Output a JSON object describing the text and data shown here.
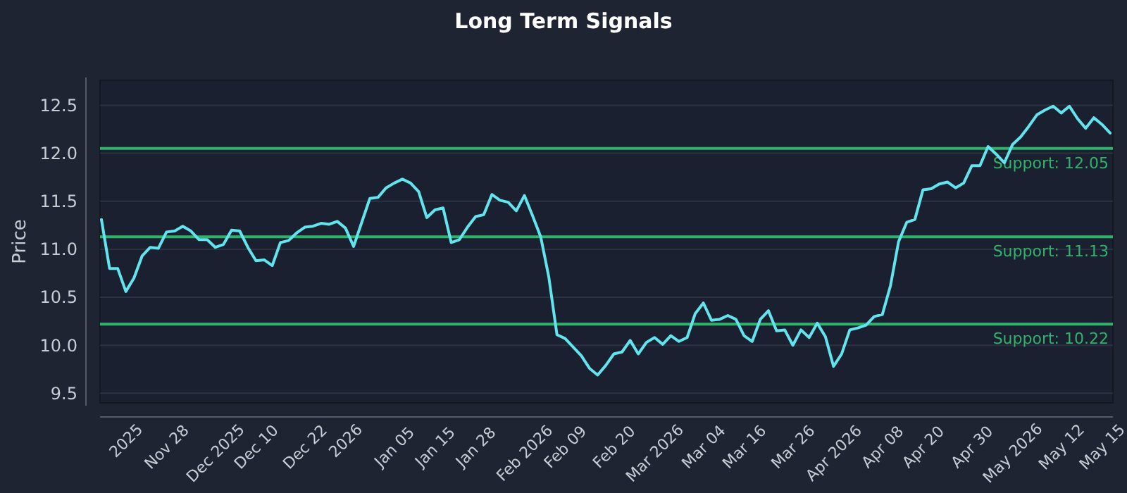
{
  "chart_data": {
    "type": "line",
    "title": "Long Term Signals",
    "ylabel": "Price",
    "categories": [
      null,
      null,
      null,
      "2025",
      null,
      null,
      null,
      null,
      "Nov 28",
      null,
      null,
      null,
      null,
      null,
      "Dec 2025",
      null,
      null,
      null,
      null,
      "Dec 10",
      null,
      null,
      null,
      null,
      null,
      "Dec 22",
      null,
      null,
      null,
      null,
      "2026",
      null,
      null,
      null,
      null,
      null,
      "Jan 05",
      null,
      null,
      null,
      null,
      "Jan 15",
      null,
      null,
      null,
      null,
      "Jan 28",
      null,
      null,
      null,
      null,
      null,
      "Feb 2026",
      null,
      null,
      null,
      null,
      "Feb 09",
      null,
      null,
      null,
      null,
      null,
      "Feb 20",
      null,
      null,
      null,
      null,
      "Mar 2026",
      null,
      null,
      null,
      null,
      null,
      "Mar 04",
      null,
      null,
      null,
      null,
      "Mar 16",
      null,
      null,
      null,
      null,
      null,
      "Mar 26",
      null,
      null,
      null,
      null,
      "Apr 2026",
      null,
      null,
      null,
      null,
      null,
      "Apr 08",
      null,
      null,
      null,
      null,
      "Apr 20",
      null,
      null,
      null,
      null,
      null,
      "Apr 30",
      null,
      null,
      null,
      null,
      "May 2026",
      null,
      null,
      null,
      null,
      null,
      "May 12",
      null,
      null,
      null,
      null,
      "May 15",
      null
    ],
    "series": [
      {
        "color": "#62e4ee",
        "values": [
          11.31,
          10.8,
          10.8,
          10.56,
          10.7,
          10.93,
          11.02,
          11.01,
          11.18,
          11.19,
          11.24,
          11.19,
          11.1,
          11.1,
          11.02,
          11.05,
          11.2,
          11.19,
          11.02,
          10.88,
          10.89,
          10.83,
          11.07,
          11.09,
          11.17,
          11.23,
          11.24,
          11.27,
          11.26,
          11.29,
          11.22,
          11.03,
          11.28,
          11.53,
          11.54,
          11.64,
          11.69,
          11.73,
          11.69,
          11.6,
          11.33,
          11.41,
          11.43,
          11.07,
          11.1,
          11.23,
          11.34,
          11.36,
          11.57,
          11.51,
          11.49,
          11.4,
          11.56,
          11.35,
          11.13,
          10.71,
          10.11,
          10.07,
          9.98,
          9.89,
          9.76,
          9.69,
          9.79,
          9.91,
          9.93,
          10.05,
          9.91,
          10.03,
          10.08,
          10.01,
          10.1,
          10.04,
          10.08,
          10.33,
          10.44,
          10.26,
          10.27,
          10.31,
          10.27,
          10.1,
          10.04,
          10.27,
          10.36,
          10.15,
          10.16,
          10.0,
          10.16,
          10.08,
          10.23,
          10.09,
          9.78,
          9.91,
          10.16,
          10.18,
          10.21,
          10.3,
          10.32,
          10.62,
          11.08,
          11.28,
          11.31,
          11.62,
          11.63,
          11.68,
          11.7,
          11.64,
          11.69,
          11.87,
          11.87,
          12.07,
          11.99,
          11.9,
          12.09,
          12.17,
          12.28,
          12.4,
          12.45,
          12.49,
          12.42,
          12.49,
          12.36,
          12.26,
          12.37,
          12.3,
          12.21
        ]
      }
    ],
    "ylim": [
      9.4,
      12.76
    ],
    "yticks": [
      {
        "value": 9.5,
        "label": "9.5"
      },
      {
        "value": 10,
        "label": "10.0"
      },
      {
        "value": 10.5,
        "label": "10.5"
      },
      {
        "value": 11,
        "label": "11.0"
      },
      {
        "value": 11.5,
        "label": "11.5"
      },
      {
        "value": 12,
        "label": "12.0"
      },
      {
        "value": 12.5,
        "label": "12.5"
      }
    ],
    "grid": "y",
    "marker": "none",
    "line_style": "solid",
    "ref_lines": [
      {
        "axis": "y",
        "value": 12.05,
        "label": "Support: 12.05",
        "color": "#2fb36b"
      },
      {
        "axis": "y",
        "value": 11.13,
        "label": "Support: 11.13",
        "color": "#2fb36b"
      },
      {
        "axis": "y",
        "value": 10.22,
        "label": "Support: 10.22",
        "color": "#2fb36b"
      }
    ]
  }
}
